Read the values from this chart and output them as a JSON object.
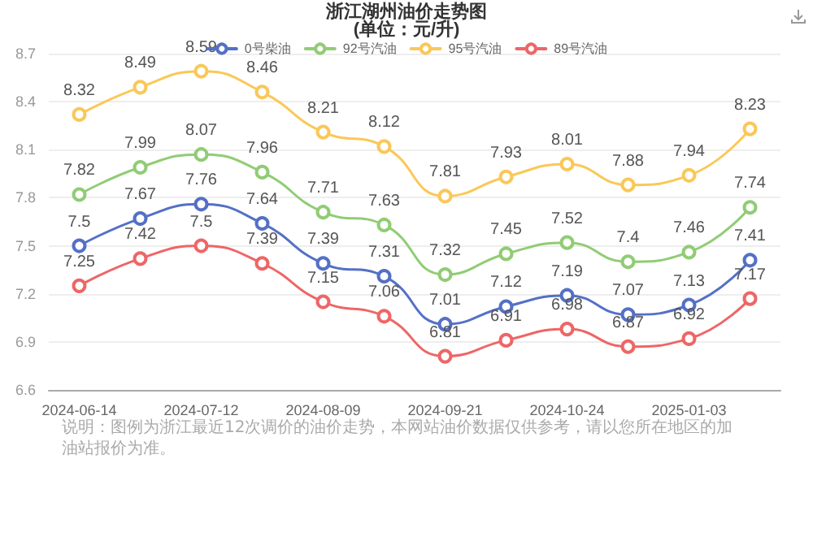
{
  "chart_data": {
    "type": "line",
    "title": "浙江湖州油价走势图",
    "subtitle": "(单位：元/升)",
    "categories": [
      "2024-06-14",
      null,
      "2024-07-12",
      null,
      "2024-08-09",
      null,
      "2024-09-21",
      null,
      "2024-10-24",
      null,
      "2025-01-03",
      null
    ],
    "series": [
      {
        "name": "0号柴油",
        "color": "#5470c6",
        "values": [
          7.5,
          7.67,
          7.76,
          7.64,
          7.39,
          7.31,
          7.01,
          7.12,
          7.19,
          7.07,
          7.13,
          7.41
        ]
      },
      {
        "name": "92号汽油",
        "color": "#91cc75",
        "values": [
          7.82,
          7.99,
          8.07,
          7.96,
          7.71,
          7.63,
          7.32,
          7.45,
          7.52,
          7.4,
          7.46,
          7.74
        ]
      },
      {
        "name": "95号汽油",
        "color": "#fac858",
        "values": [
          8.32,
          8.49,
          8.59,
          8.46,
          8.21,
          8.12,
          7.81,
          7.93,
          8.01,
          7.88,
          7.94,
          8.23
        ]
      },
      {
        "name": "89号汽油",
        "color": "#ee6666",
        "values": [
          7.25,
          7.42,
          7.5,
          7.39,
          7.15,
          7.06,
          6.81,
          6.91,
          6.98,
          6.87,
          6.92,
          7.17
        ]
      }
    ],
    "ylim": [
      6.6,
      8.7
    ],
    "yticks": [
      6.6,
      6.9,
      7.2,
      7.5,
      7.8,
      8.1,
      8.4,
      8.7
    ],
    "grid": "y",
    "legend": "top",
    "marker": "circle",
    "line_style": "solid",
    "data_labels": true,
    "annotations": [
      "说明：图例为浙江最近12次调价的油价走势，本网站油价数据仅供参考，请以您所在地区的加油站报价为准。"
    ]
  }
}
